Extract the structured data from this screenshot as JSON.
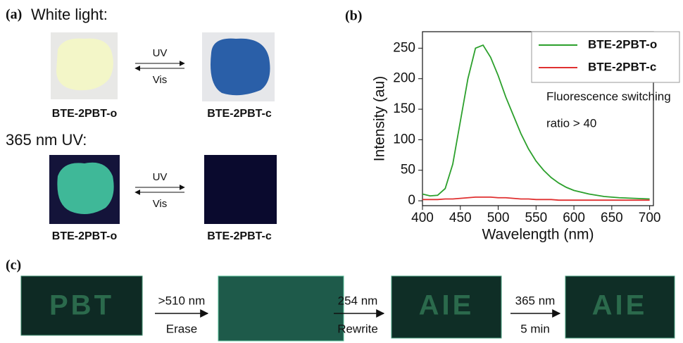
{
  "panel_a": {
    "label": "(a)",
    "white_light": "White light:",
    "uv_light": "365 nm UV:",
    "arrow_top": "UV",
    "arrow_bottom": "Vis",
    "arrow_top_2": "UV",
    "arrow_bottom_2": "Vis",
    "open_1": "BTE-2PBT-o",
    "closed_1": "BTE-2PBT-c",
    "open_2": "BTE-2PBT-o",
    "closed_2": "BTE-2PBT-c"
  },
  "panel_b_label": "(b)",
  "chart_data": {
    "type": "line",
    "xlabel": "Wavelength (nm)",
    "ylabel": "Intensity (au)",
    "annotations": [
      "Fluorescence switching",
      "ratio > 40"
    ],
    "x": [
      400,
      410,
      420,
      430,
      440,
      450,
      460,
      470,
      480,
      490,
      500,
      510,
      520,
      530,
      540,
      550,
      560,
      570,
      580,
      590,
      600,
      620,
      640,
      660,
      680,
      700
    ],
    "series": [
      {
        "name": "BTE-2PBT-o",
        "color": "#2ca02c",
        "values": [
          11,
          8,
          9,
          20,
          60,
          130,
          200,
          250,
          255,
          235,
          205,
          170,
          140,
          110,
          85,
          65,
          50,
          38,
          29,
          22,
          17,
          11,
          7,
          5,
          4,
          3
        ]
      },
      {
        "name": "BTE-2PBT-c",
        "color": "#e03030",
        "values": [
          2,
          2,
          2,
          3,
          3,
          4,
          5,
          6,
          6,
          6,
          5,
          5,
          4,
          3,
          3,
          2,
          2,
          2,
          1,
          1,
          1,
          1,
          1,
          1,
          1,
          1
        ]
      }
    ],
    "xlim": [
      400,
      705
    ],
    "ylim": [
      -8,
      277
    ],
    "xticks": [
      400,
      450,
      500,
      550,
      600,
      650,
      700
    ],
    "yticks": [
      0,
      50,
      100,
      150,
      200,
      250
    ],
    "legend": "upper right"
  },
  "panel_c": {
    "label": "(c)",
    "image_1_text": "PBT",
    "step_1_top": ">510 nm",
    "step_1_bottom": "Erase",
    "step_2_top": "254 nm",
    "step_2_bottom": "Rewrite",
    "image_3_text": "AIE",
    "step_3_top": "365 nm",
    "step_3_bottom": "5 min",
    "image_4_text": "AIE"
  }
}
